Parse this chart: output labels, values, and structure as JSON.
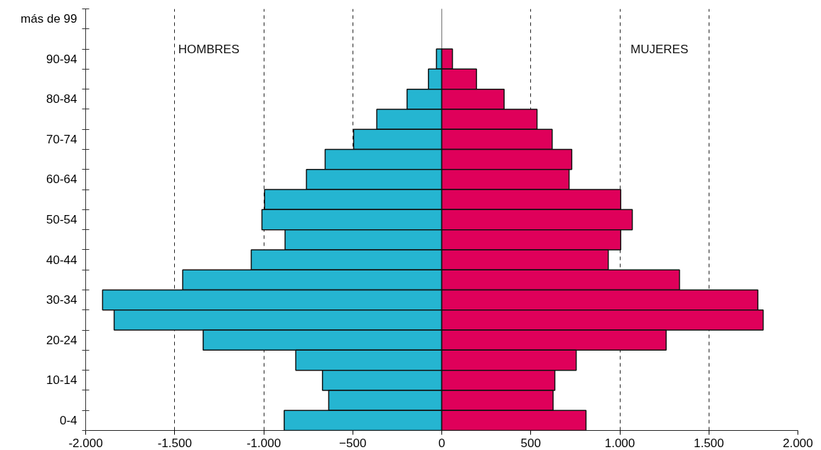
{
  "chart_data": {
    "type": "bar",
    "orientation": "horizontal",
    "stacked": true,
    "categories": [
      "más de 99",
      null,
      "90-94",
      null,
      "80-84",
      null,
      "70-74",
      null,
      "60-64",
      null,
      "50-54",
      null,
      "40-44",
      null,
      "30-34",
      null,
      "20-24",
      null,
      "10-14",
      null,
      "0-4"
    ],
    "series": [
      {
        "color": "#25b5d1",
        "values": [
          null,
          null,
          -30,
          -75,
          -195,
          -365,
          -495,
          -655,
          -760,
          -995,
          -1010,
          -880,
          -1070,
          -1455,
          -1905,
          -1840,
          -1340,
          -820,
          -670,
          -635,
          -885
        ]
      },
      {
        "color": "#df005a",
        "values": [
          null,
          null,
          60,
          195,
          350,
          535,
          620,
          730,
          715,
          1005,
          1070,
          1005,
          935,
          1335,
          1775,
          1805,
          1260,
          755,
          635,
          625,
          810
        ]
      }
    ],
    "xlim": [
      -2000,
      2000
    ],
    "xticks": [
      {
        "value": -2000,
        "label": "-2.000"
      },
      {
        "value": -1500,
        "label": "-1.500"
      },
      {
        "value": -1000,
        "label": "-1.000"
      },
      -500,
      0,
      500,
      {
        "value": 1000,
        "label": "1.000"
      },
      {
        "value": 1500,
        "label": "1.500"
      },
      {
        "value": 2000,
        "label": "2.000"
      }
    ],
    "grid": "x",
    "ref_lines": [
      {
        "axis": "x",
        "value": 0,
        "color": "#808080",
        "line_style": "solid"
      }
    ],
    "annotations": [
      "HOMBRES",
      "MUJERES"
    ]
  }
}
